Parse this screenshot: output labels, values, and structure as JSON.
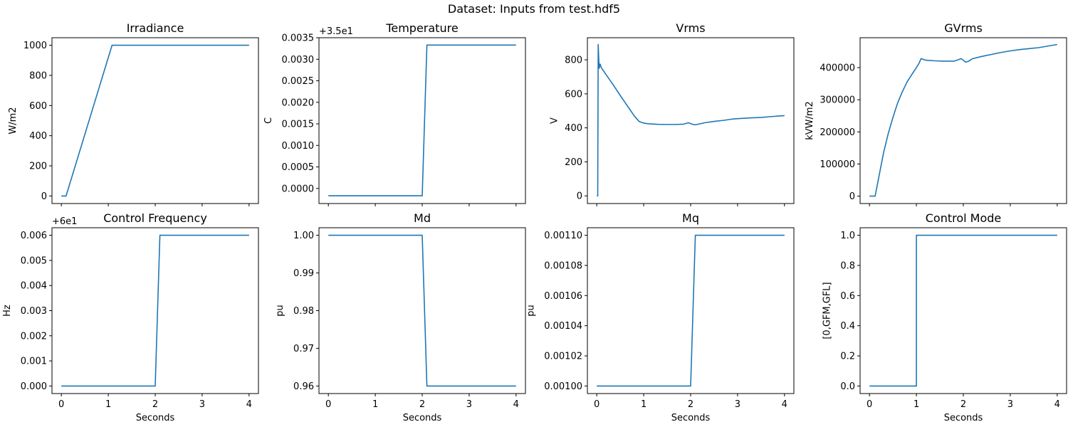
{
  "suptitle": "Dataset: Inputs from test.hdf5",
  "xlabel": "Seconds",
  "chart_data": [
    {
      "type": "line",
      "title": "Irradiance",
      "ylabel": "W/m2",
      "offset_text": "",
      "xlim": [
        -0.2,
        4.2
      ],
      "ylim": [
        -50,
        1050
      ],
      "yticks": [
        0,
        200,
        400,
        600,
        800,
        1000
      ],
      "yticklabels": [
        "0",
        "200",
        "400",
        "600",
        "800",
        "1000"
      ],
      "xticks": [
        0,
        1,
        2,
        3,
        4
      ],
      "xticklabels": [
        "0",
        "1",
        "2",
        "3",
        "4"
      ],
      "show_xticklabels": false,
      "show_xlabel": false,
      "line_color": "#1f77b4",
      "series": [
        {
          "x": [
            0,
            0.1,
            1.08,
            4
          ],
          "y": [
            0,
            0,
            1000,
            1000
          ]
        }
      ]
    },
    {
      "type": "line",
      "title": "Temperature",
      "ylabel": "C",
      "offset_text": "+3.5e1",
      "xlim": [
        -0.2,
        4.2
      ],
      "ylim": [
        -0.00035,
        0.0035
      ],
      "yticks": [
        0,
        0.0005,
        0.001,
        0.0015,
        0.002,
        0.0025,
        0.003,
        0.0035
      ],
      "yticklabels": [
        "0.0000",
        "0.0005",
        "0.0010",
        "0.0015",
        "0.0020",
        "0.0025",
        "0.0030",
        "0.0035"
      ],
      "xticks": [
        0,
        1,
        2,
        3,
        4
      ],
      "xticklabels": [
        "0",
        "1",
        "2",
        "3",
        "4"
      ],
      "show_xticklabels": false,
      "show_xlabel": false,
      "line_color": "#1f77b4",
      "series": [
        {
          "x": [
            0,
            2.0,
            2.1,
            4
          ],
          "y": [
            -0.00017,
            -0.00017,
            0.00333,
            0.00333
          ]
        }
      ]
    },
    {
      "type": "line",
      "title": "Vrms",
      "ylabel": "V",
      "offset_text": "",
      "xlim": [
        -0.2,
        4.2
      ],
      "ylim": [
        -45,
        930
      ],
      "yticks": [
        0,
        200,
        400,
        600,
        800
      ],
      "yticklabels": [
        "0",
        "200",
        "400",
        "600",
        "800"
      ],
      "xticks": [
        0,
        1,
        2,
        3,
        4
      ],
      "xticklabels": [
        "0",
        "1",
        "2",
        "3",
        "4"
      ],
      "show_xticklabels": false,
      "show_xlabel": false,
      "line_color": "#1f77b4",
      "series": [
        {
          "x": [
            0,
            0.02,
            0.03,
            0.05,
            0.07,
            0.1,
            0.2,
            0.3,
            0.4,
            0.5,
            0.6,
            0.7,
            0.8,
            0.9,
            1.0,
            1.1,
            1.3,
            1.5,
            1.7,
            1.85,
            1.95,
            2.05,
            2.1,
            2.3,
            2.5,
            2.7,
            2.9,
            3.1,
            3.3,
            3.5,
            3.7,
            3.9,
            4.0
          ],
          "y": [
            0,
            0,
            890,
            750,
            775,
            752,
            712,
            673,
            632,
            590,
            550,
            510,
            470,
            438,
            428,
            424,
            421,
            420,
            420,
            422,
            430,
            420,
            418,
            430,
            438,
            444,
            452,
            456,
            459,
            461,
            466,
            470,
            472
          ]
        }
      ]
    },
    {
      "type": "line",
      "title": "GVrms",
      "ylabel": "kVW/m2",
      "offset_text": "",
      "xlim": [
        -0.2,
        4.2
      ],
      "ylim": [
        -23000,
        493000
      ],
      "yticks": [
        0,
        100000,
        200000,
        300000,
        400000
      ],
      "yticklabels": [
        "0",
        "100000",
        "200000",
        "300000",
        "400000"
      ],
      "xticks": [
        0,
        1,
        2,
        3,
        4
      ],
      "xticklabels": [
        "0",
        "1",
        "2",
        "3",
        "4"
      ],
      "show_xticklabels": false,
      "show_xlabel": false,
      "line_color": "#1f77b4",
      "series": [
        {
          "x": [
            0,
            0.12,
            0.2,
            0.3,
            0.4,
            0.5,
            0.6,
            0.7,
            0.8,
            0.9,
            1.0,
            1.05,
            1.1,
            1.2,
            1.4,
            1.6,
            1.8,
            1.9,
            1.95,
            2.0,
            2.05,
            2.1,
            2.2,
            2.4,
            2.6,
            2.8,
            3.0,
            3.2,
            3.4,
            3.6,
            3.8,
            4.0
          ],
          "y": [
            0,
            0,
            60000,
            135000,
            195000,
            245000,
            290000,
            325000,
            355000,
            378000,
            400000,
            412000,
            428000,
            423000,
            421000,
            420000,
            420000,
            425000,
            428000,
            423000,
            417000,
            419000,
            428000,
            435000,
            441000,
            447000,
            452000,
            456000,
            459000,
            462000,
            467000,
            472000
          ]
        }
      ]
    },
    {
      "type": "line",
      "title": "Control Frequency",
      "ylabel": "Hz",
      "offset_text": "+6e1",
      "xlim": [
        -0.2,
        4.2
      ],
      "ylim": [
        -0.0003,
        0.0063
      ],
      "yticks": [
        0,
        0.001,
        0.002,
        0.003,
        0.004,
        0.005,
        0.006
      ],
      "yticklabels": [
        "0.000",
        "0.001",
        "0.002",
        "0.003",
        "0.004",
        "0.005",
        "0.006"
      ],
      "xticks": [
        0,
        1,
        2,
        3,
        4
      ],
      "xticklabels": [
        "0",
        "1",
        "2",
        "3",
        "4"
      ],
      "show_xticklabels": true,
      "show_xlabel": true,
      "line_color": "#1f77b4",
      "series": [
        {
          "x": [
            0,
            2.0,
            2.1,
            4
          ],
          "y": [
            0,
            0,
            0.006,
            0.006
          ]
        }
      ]
    },
    {
      "type": "line",
      "title": "Md",
      "ylabel": "pu",
      "offset_text": "",
      "xlim": [
        -0.2,
        4.2
      ],
      "ylim": [
        0.958,
        1.002
      ],
      "yticks": [
        0.96,
        0.97,
        0.98,
        0.99,
        1.0
      ],
      "yticklabels": [
        "0.96",
        "0.97",
        "0.98",
        "0.99",
        "1.00"
      ],
      "xticks": [
        0,
        1,
        2,
        3,
        4
      ],
      "xticklabels": [
        "0",
        "1",
        "2",
        "3",
        "4"
      ],
      "show_xticklabels": true,
      "show_xlabel": true,
      "line_color": "#1f77b4",
      "series": [
        {
          "x": [
            0,
            2.0,
            2.1,
            4
          ],
          "y": [
            1.0,
            1.0,
            0.96,
            0.96
          ]
        }
      ]
    },
    {
      "type": "line",
      "title": "Mq",
      "ylabel": "pu",
      "offset_text": "",
      "xlim": [
        -0.2,
        4.2
      ],
      "ylim": [
        0.000995,
        0.001105
      ],
      "yticks": [
        0.001,
        0.00102,
        0.00104,
        0.00106,
        0.00108,
        0.0011
      ],
      "yticklabels": [
        "0.00100",
        "0.00102",
        "0.00104",
        "0.00106",
        "0.00108",
        "0.00110"
      ],
      "xticks": [
        0,
        1,
        2,
        3,
        4
      ],
      "xticklabels": [
        "0",
        "1",
        "2",
        "3",
        "4"
      ],
      "show_xticklabels": true,
      "show_xlabel": true,
      "line_color": "#1f77b4",
      "series": [
        {
          "x": [
            0,
            2.0,
            2.1,
            4
          ],
          "y": [
            0.001,
            0.001,
            0.0011,
            0.0011
          ]
        }
      ]
    },
    {
      "type": "line",
      "title": "Control Mode",
      "ylabel": "[0,GFM,GFL]",
      "offset_text": "",
      "xlim": [
        -0.2,
        4.2
      ],
      "ylim": [
        -0.05,
        1.05
      ],
      "yticks": [
        0,
        0.2,
        0.4,
        0.6,
        0.8,
        1.0
      ],
      "yticklabels": [
        "0.0",
        "0.2",
        "0.4",
        "0.6",
        "0.8",
        "1.0"
      ],
      "xticks": [
        0,
        1,
        2,
        3,
        4
      ],
      "xticklabels": [
        "0",
        "1",
        "2",
        "3",
        "4"
      ],
      "show_xticklabels": true,
      "show_xlabel": true,
      "line_color": "#1f77b4",
      "series": [
        {
          "x": [
            0,
            1.0,
            1.0,
            4
          ],
          "y": [
            0,
            0,
            1,
            1
          ]
        }
      ]
    }
  ]
}
